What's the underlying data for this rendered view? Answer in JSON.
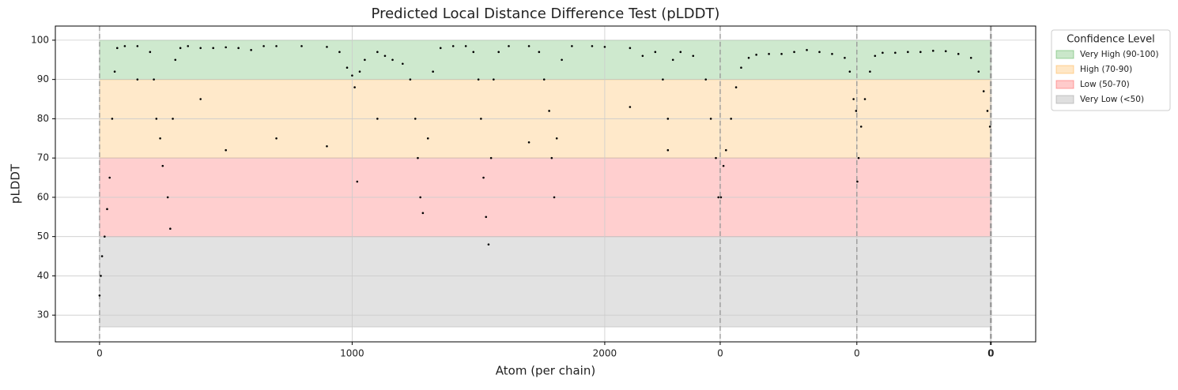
{
  "chart_data": {
    "type": "scatter",
    "title": "Predicted Local Distance Difference Test (pLDDT)",
    "x_label": "Atom (per chain)",
    "y_label": "pLDDT",
    "xlim": [
      -175,
      3706
    ],
    "ylim": [
      23.2,
      103.6
    ],
    "xticks": [
      0,
      1000,
      2000,
      {
        "value": 2457,
        "label": "0"
      },
      {
        "value": 2998,
        "label": "0"
      },
      {
        "value": 3527,
        "label": "0"
      },
      {
        "value": 3530,
        "label": "0"
      }
    ],
    "yticks": [
      30,
      40,
      50,
      60,
      70,
      80,
      90,
      100
    ],
    "grid": true,
    "color": "#000000",
    "chain_boundaries": [
      0,
      2457,
      2998,
      3527,
      3530
    ],
    "legend_title": "Confidence Level",
    "legend_position": "outside-upper-right",
    "bands": [
      {
        "name": "Very High (90-100)",
        "range": [
          90,
          100
        ],
        "color": "#2ca02c"
      },
      {
        "name": "High (70-90)",
        "range": [
          70,
          90
        ],
        "color": "#ff9f1c"
      },
      {
        "name": "Low (50-70)",
        "range": [
          50,
          70
        ],
        "color": "#ff3030"
      },
      {
        "name": "Very Low (<50)",
        "range": [
          27,
          50
        ],
        "color": "#808080"
      }
    ],
    "x": [
      0,
      5,
      10,
      20,
      30,
      40,
      50,
      60,
      70,
      100,
      150,
      150,
      200,
      215,
      225,
      240,
      250,
      270,
      280,
      290,
      300,
      320,
      350,
      400,
      400,
      450,
      500,
      500,
      550,
      600,
      650,
      700,
      700,
      800,
      900,
      900,
      950,
      980,
      1000,
      1010,
      1020,
      1030,
      1050,
      1100,
      1100,
      1130,
      1160,
      1200,
      1230,
      1250,
      1260,
      1270,
      1280,
      1300,
      1320,
      1350,
      1400,
      1450,
      1480,
      1500,
      1510,
      1520,
      1530,
      1540,
      1550,
      1560,
      1580,
      1620,
      1700,
      1700,
      1740,
      1760,
      1780,
      1790,
      1800,
      1810,
      1830,
      1870,
      1950,
      2000,
      2100,
      2100,
      2150,
      2200,
      2230,
      2250,
      2250,
      2270,
      2300,
      2350,
      2400,
      2420,
      2440,
      2450,
      2460,
      2470,
      2480,
      2500,
      2520,
      2540,
      2570,
      2600,
      2650,
      2700,
      2750,
      2800,
      2850,
      2900,
      2950,
      2970,
      2985,
      2995,
      3000,
      3005,
      3015,
      3030,
      3050,
      3070,
      3100,
      3150,
      3200,
      3250,
      3300,
      3350,
      3400,
      3450,
      3480,
      3500,
      3515,
      3525
    ],
    "values": [
      35,
      40,
      45,
      50,
      57,
      65,
      80,
      92,
      98,
      98.5,
      98.5,
      90,
      97,
      90,
      80,
      75,
      68,
      60,
      52,
      80,
      95,
      98,
      98.5,
      98,
      85,
      98,
      98.2,
      72,
      98,
      97.5,
      98.5,
      98.5,
      75,
      98.5,
      98.3,
      73,
      97,
      93,
      91,
      88,
      64,
      92,
      95,
      97,
      80,
      96,
      95,
      94,
      90,
      80,
      70,
      60,
      56,
      75,
      92,
      98,
      98.5,
      98.5,
      97,
      90,
      80,
      65,
      55,
      48,
      70,
      90,
      97,
      98.5,
      98.5,
      74,
      97,
      90,
      82,
      70,
      60,
      75,
      95,
      98.5,
      98.5,
      98.3,
      98,
      83,
      96,
      97,
      90,
      80,
      72,
      95,
      97,
      96,
      90,
      80,
      70,
      60,
      60,
      68,
      72,
      80,
      88,
      93,
      95.5,
      96.3,
      96.5,
      96.5,
      97,
      97.5,
      97,
      96.5,
      95.5,
      92,
      85,
      82,
      64,
      70,
      78,
      85,
      92,
      96,
      96.8,
      96.8,
      97,
      97,
      97.3,
      97.2,
      96.5,
      95.5,
      92,
      87,
      82,
      78
    ]
  }
}
